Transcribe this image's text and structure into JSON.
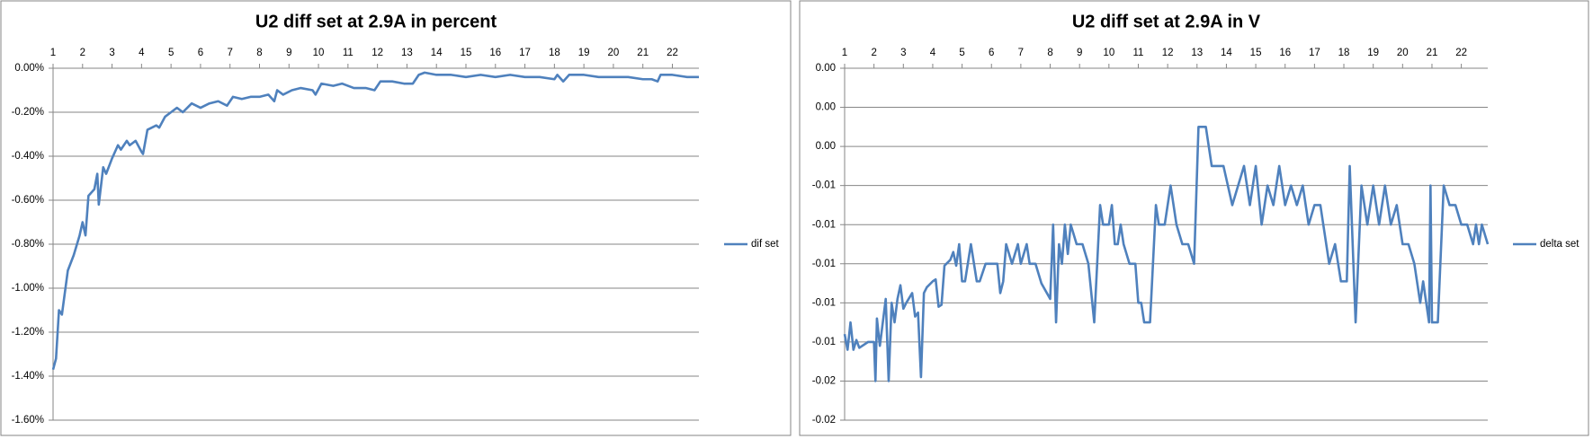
{
  "chart_data": [
    {
      "type": "line",
      "title": "U2 diff set at 2.9A in percent",
      "legend": "right",
      "grid": true,
      "x": [
        1,
        1.1,
        1.2,
        1.3,
        1.5,
        1.7,
        1.9,
        2.0,
        2.1,
        2.2,
        2.4,
        2.5,
        2.55,
        2.7,
        2.8,
        3.0,
        3.2,
        3.3,
        3.5,
        3.6,
        3.8,
        4.0,
        4.05,
        4.2,
        4.5,
        4.6,
        4.8,
        5.0,
        5.2,
        5.4,
        5.7,
        6.0,
        6.3,
        6.6,
        6.9,
        7.1,
        7.4,
        7.7,
        8.0,
        8.3,
        8.5,
        8.6,
        8.8,
        9.1,
        9.4,
        9.8,
        9.9,
        10.1,
        10.5,
        10.8,
        11.2,
        11.6,
        11.9,
        12.1,
        12.5,
        12.9,
        13.2,
        13.4,
        13.6,
        14.0,
        14.5,
        15.0,
        15.5,
        16.0,
        16.5,
        17.0,
        17.5,
        18.0,
        18.1,
        18.3,
        18.5,
        19.0,
        19.5,
        20.0,
        20.5,
        21.0,
        21.3,
        21.5,
        21.6,
        22.0,
        22.5,
        22.9
      ],
      "series": [
        {
          "name": "dif set",
          "color": "#4f81bd",
          "values": [
            -1.37,
            -1.32,
            -1.1,
            -1.12,
            -0.92,
            -0.85,
            -0.76,
            -0.7,
            -0.76,
            -0.58,
            -0.55,
            -0.48,
            -0.62,
            -0.45,
            -0.48,
            -0.41,
            -0.35,
            -0.37,
            -0.33,
            -0.35,
            -0.33,
            -0.38,
            -0.39,
            -0.28,
            -0.26,
            -0.27,
            -0.22,
            -0.2,
            -0.18,
            -0.2,
            -0.16,
            -0.18,
            -0.16,
            -0.15,
            -0.17,
            -0.13,
            -0.14,
            -0.13,
            -0.13,
            -0.12,
            -0.15,
            -0.1,
            -0.12,
            -0.1,
            -0.09,
            -0.1,
            -0.12,
            -0.07,
            -0.08,
            -0.07,
            -0.09,
            -0.09,
            -0.1,
            -0.06,
            -0.06,
            -0.07,
            -0.07,
            -0.03,
            -0.02,
            -0.03,
            -0.03,
            -0.04,
            -0.03,
            -0.04,
            -0.03,
            -0.04,
            -0.04,
            -0.05,
            -0.03,
            -0.06,
            -0.03,
            -0.03,
            -0.04,
            -0.04,
            -0.04,
            -0.05,
            -0.05,
            -0.06,
            -0.03,
            -0.03,
            -0.04,
            -0.04
          ]
        }
      ],
      "xlim": [
        1,
        22.9
      ],
      "xticks": [
        1,
        2,
        3,
        4,
        5,
        6,
        7,
        8,
        9,
        10,
        11,
        12,
        13,
        14,
        15,
        16,
        17,
        18,
        19,
        20,
        21,
        22
      ],
      "ylim": [
        -1.6,
        0
      ],
      "yticks": [
        {
          "value": 0,
          "label": "0.00%"
        },
        {
          "value": -0.2,
          "label": "-0.20%"
        },
        {
          "value": -0.4,
          "label": "-0.40%"
        },
        {
          "value": -0.6,
          "label": "-0.60%"
        },
        {
          "value": -0.8,
          "label": "-0.80%"
        },
        {
          "value": -1.0,
          "label": "-1.00%"
        },
        {
          "value": -1.2,
          "label": "-1.20%"
        },
        {
          "value": -1.4,
          "label": "-1.40%"
        },
        {
          "value": -1.6,
          "label": "-1.60%"
        }
      ]
    },
    {
      "type": "line",
      "title": "U2 diff set at 2.9A in V",
      "legend": "right",
      "grid": true,
      "x": [
        1.0,
        1.1,
        1.2,
        1.3,
        1.4,
        1.5,
        1.8,
        2.0,
        2.05,
        2.1,
        2.2,
        2.4,
        2.5,
        2.6,
        2.7,
        2.8,
        2.9,
        3.0,
        3.1,
        3.3,
        3.4,
        3.5,
        3.6,
        3.7,
        3.8,
        4.0,
        4.1,
        4.2,
        4.3,
        4.4,
        4.6,
        4.7,
        4.8,
        4.9,
        5.0,
        5.1,
        5.3,
        5.5,
        5.6,
        5.8,
        6.0,
        6.2,
        6.3,
        6.4,
        6.5,
        6.7,
        6.9,
        7.0,
        7.2,
        7.3,
        7.5,
        7.7,
        8.0,
        8.1,
        8.2,
        8.3,
        8.4,
        8.5,
        8.6,
        8.7,
        8.9,
        9.1,
        9.3,
        9.5,
        9.7,
        9.8,
        10.0,
        10.1,
        10.2,
        10.3,
        10.4,
        10.5,
        10.7,
        10.9,
        11.0,
        11.1,
        11.2,
        11.4,
        11.6,
        11.7,
        11.9,
        12.1,
        12.3,
        12.5,
        12.7,
        12.9,
        13.05,
        13.3,
        13.5,
        13.9,
        14.2,
        14.4,
        14.6,
        14.8,
        15.0,
        15.2,
        15.4,
        15.6,
        15.8,
        16.0,
        16.2,
        16.4,
        16.6,
        16.8,
        17.0,
        17.2,
        17.5,
        17.7,
        17.9,
        18.1,
        18.2,
        18.4,
        18.6,
        18.8,
        19.0,
        19.2,
        19.4,
        19.6,
        19.8,
        20.0,
        20.2,
        20.4,
        20.6,
        20.7,
        20.9,
        20.95,
        21.0,
        21.2,
        21.4,
        21.6,
        21.8,
        22.0,
        22.2,
        22.4,
        22.5,
        22.6,
        22.7,
        22.9
      ],
      "series": [
        {
          "name": "delta set",
          "color": "#4f81bd",
          "values": [
            -0.0126,
            -0.0134,
            -0.012,
            -0.0134,
            -0.0129,
            -0.0133,
            -0.013,
            -0.013,
            -0.015,
            -0.0118,
            -0.0132,
            -0.0108,
            -0.015,
            -0.011,
            -0.012,
            -0.0108,
            -0.0101,
            -0.0113,
            -0.011,
            -0.0105,
            -0.0117,
            -0.0115,
            -0.0148,
            -0.0105,
            -0.0102,
            -0.0099,
            -0.0098,
            -0.0112,
            -0.0111,
            -0.0091,
            -0.0088,
            -0.0084,
            -0.0091,
            -0.008,
            -0.0099,
            -0.0099,
            -0.008,
            -0.0099,
            -0.0099,
            -0.009,
            -0.009,
            -0.009,
            -0.0105,
            -0.0099,
            -0.008,
            -0.009,
            -0.008,
            -0.009,
            -0.008,
            -0.009,
            -0.009,
            -0.01,
            -0.0108,
            -0.007,
            -0.012,
            -0.008,
            -0.009,
            -0.007,
            -0.0085,
            -0.007,
            -0.008,
            -0.008,
            -0.009,
            -0.012,
            -0.006,
            -0.007,
            -0.007,
            -0.006,
            -0.008,
            -0.008,
            -0.007,
            -0.008,
            -0.009,
            -0.009,
            -0.011,
            -0.011,
            -0.012,
            -0.012,
            -0.006,
            -0.007,
            -0.007,
            -0.005,
            -0.007,
            -0.008,
            -0.008,
            -0.009,
            -0.002,
            -0.002,
            -0.004,
            -0.004,
            -0.006,
            -0.005,
            -0.004,
            -0.006,
            -0.004,
            -0.007,
            -0.005,
            -0.006,
            -0.004,
            -0.006,
            -0.005,
            -0.006,
            -0.005,
            -0.007,
            -0.006,
            -0.006,
            -0.009,
            -0.008,
            -0.0099,
            -0.0099,
            -0.004,
            -0.012,
            -0.005,
            -0.007,
            -0.005,
            -0.007,
            -0.005,
            -0.007,
            -0.006,
            -0.008,
            -0.008,
            -0.009,
            -0.011,
            -0.0099,
            -0.012,
            -0.005,
            -0.012,
            -0.012,
            -0.005,
            -0.006,
            -0.006,
            -0.007,
            -0.007,
            -0.008,
            -0.007,
            -0.008,
            -0.007,
            -0.008
          ]
        }
      ],
      "xlim": [
        1,
        22.9
      ],
      "xticks": [
        1,
        2,
        3,
        4,
        5,
        6,
        7,
        8,
        9,
        10,
        11,
        12,
        13,
        14,
        15,
        16,
        17,
        18,
        19,
        20,
        21,
        22
      ],
      "ylim": [
        -0.017,
        0.001
      ],
      "yticks": [
        {
          "value": 0.001,
          "label": "0.00"
        },
        {
          "value": -0.001,
          "label": "0.00"
        },
        {
          "value": -0.003,
          "label": "0.00"
        },
        {
          "value": -0.005,
          "label": "-0.01"
        },
        {
          "value": -0.007,
          "label": "-0.01"
        },
        {
          "value": -0.009,
          "label": "-0.01"
        },
        {
          "value": -0.011,
          "label": "-0.01"
        },
        {
          "value": -0.013,
          "label": "-0.01"
        },
        {
          "value": -0.015,
          "label": "-0.02"
        },
        {
          "value": -0.017,
          "label": "-0.02"
        }
      ]
    }
  ]
}
